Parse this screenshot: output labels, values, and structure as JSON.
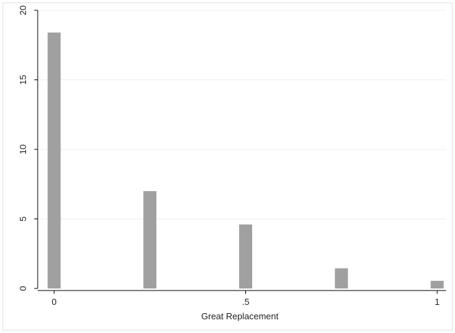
{
  "chart_data": {
    "type": "bar",
    "title": "",
    "xlabel": "Great Replacement",
    "ylabel": "",
    "x": [
      0,
      0.25,
      0.5,
      0.75,
      1
    ],
    "values": [
      18.4,
      7.0,
      4.6,
      1.45,
      0.55
    ],
    "xlim": [
      0,
      1
    ],
    "ylim": [
      0,
      20
    ],
    "xticks": [
      0,
      0.5,
      1
    ],
    "xtick_labels": [
      "0",
      ".5",
      "1"
    ],
    "yticks": [
      0,
      5,
      10,
      15,
      20
    ],
    "ytick_labels": [
      "0",
      "5",
      "10",
      "15",
      "20"
    ],
    "grid": true,
    "colors": {
      "bar": "#a0a0a0",
      "grid": "#eaf0f2",
      "axis": "#000000",
      "frame": "#dcdcdc"
    }
  }
}
